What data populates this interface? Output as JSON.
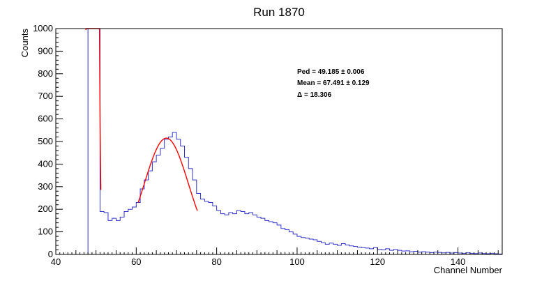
{
  "chart_data": {
    "type": "histogram",
    "title": "Run 1870",
    "xlabel": "Channel Number",
    "ylabel": "Counts",
    "xlim": [
      40,
      151
    ],
    "ylim": [
      0,
      1000
    ],
    "x_ticks": [
      40,
      60,
      80,
      100,
      120,
      140
    ],
    "y_ticks": [
      0,
      100,
      200,
      300,
      400,
      500,
      600,
      700,
      800,
      900,
      1000
    ],
    "grid": false,
    "histogram": {
      "name": "",
      "color": "#3333cc",
      "bin_width": 1,
      "bins": [
        [
          40,
          0
        ],
        [
          41,
          0
        ],
        [
          42,
          0
        ],
        [
          43,
          0
        ],
        [
          44,
          0
        ],
        [
          45,
          0
        ],
        [
          46,
          0
        ],
        [
          47,
          0
        ],
        [
          48,
          1000
        ],
        [
          49,
          1000
        ],
        [
          50,
          1000
        ],
        [
          51,
          190
        ],
        [
          52,
          185
        ],
        [
          53,
          150
        ],
        [
          54,
          160
        ],
        [
          55,
          150
        ],
        [
          56,
          165
        ],
        [
          57,
          190
        ],
        [
          58,
          200
        ],
        [
          59,
          210
        ],
        [
          60,
          230
        ],
        [
          61,
          290
        ],
        [
          62,
          330
        ],
        [
          63,
          370
        ],
        [
          64,
          410
        ],
        [
          65,
          440
        ],
        [
          66,
          470
        ],
        [
          67,
          510
        ],
        [
          68,
          520
        ],
        [
          69,
          540
        ],
        [
          70,
          510
        ],
        [
          71,
          480
        ],
        [
          72,
          430
        ],
        [
          73,
          380
        ],
        [
          74,
          330
        ],
        [
          75,
          270
        ],
        [
          76,
          245
        ],
        [
          77,
          235
        ],
        [
          78,
          230
        ],
        [
          79,
          215
        ],
        [
          80,
          195
        ],
        [
          81,
          180
        ],
        [
          82,
          175
        ],
        [
          83,
          185
        ],
        [
          84,
          180
        ],
        [
          85,
          195
        ],
        [
          86,
          190
        ],
        [
          87,
          180
        ],
        [
          88,
          185
        ],
        [
          89,
          175
        ],
        [
          90,
          165
        ],
        [
          91,
          160
        ],
        [
          92,
          150
        ],
        [
          93,
          145
        ],
        [
          94,
          140
        ],
        [
          95,
          130
        ],
        [
          96,
          115
        ],
        [
          97,
          110
        ],
        [
          98,
          100
        ],
        [
          99,
          90
        ],
        [
          100,
          80
        ],
        [
          101,
          75
        ],
        [
          102,
          72
        ],
        [
          103,
          68
        ],
        [
          104,
          65
        ],
        [
          105,
          58
        ],
        [
          106,
          52
        ],
        [
          107,
          45
        ],
        [
          108,
          50
        ],
        [
          109,
          45
        ],
        [
          110,
          40
        ],
        [
          111,
          48
        ],
        [
          112,
          42
        ],
        [
          113,
          38
        ],
        [
          114,
          35
        ],
        [
          115,
          32
        ],
        [
          116,
          30
        ],
        [
          117,
          28
        ],
        [
          118,
          25
        ],
        [
          119,
          30
        ],
        [
          120,
          22
        ],
        [
          121,
          20
        ],
        [
          122,
          25
        ],
        [
          123,
          18
        ],
        [
          124,
          22
        ],
        [
          125,
          18
        ],
        [
          126,
          15
        ],
        [
          127,
          16
        ],
        [
          128,
          12
        ],
        [
          129,
          14
        ],
        [
          130,
          10
        ],
        [
          131,
          12
        ],
        [
          132,
          10
        ],
        [
          133,
          8
        ],
        [
          134,
          10
        ],
        [
          135,
          9
        ],
        [
          136,
          7
        ],
        [
          137,
          9
        ],
        [
          138,
          6
        ],
        [
          139,
          8
        ],
        [
          140,
          6
        ],
        [
          141,
          5
        ],
        [
          142,
          7
        ],
        [
          143,
          5
        ],
        [
          144,
          4
        ],
        [
          145,
          6
        ],
        [
          146,
          4
        ],
        [
          147,
          3
        ],
        [
          148,
          5
        ],
        [
          149,
          3
        ],
        [
          150,
          2
        ]
      ]
    },
    "fits": [
      {
        "name": "",
        "kind": "gaussian",
        "color": "#ff0000",
        "amplitude": 18000,
        "mean": 49.185,
        "sigma": 0.7,
        "range": [
          47.5,
          51.2
        ]
      },
      {
        "name": "",
        "kind": "gaussian",
        "color": "#ff0000",
        "amplitude": 515,
        "mean": 67.491,
        "sigma": 5.5,
        "range": [
          60.5,
          75.2
        ]
      }
    ],
    "annotations": {
      "ped": "Ped = 49.185 ± 0.006",
      "mean": "Mean = 67.491 ± 0.129",
      "delta": "Δ = 18.306"
    }
  }
}
